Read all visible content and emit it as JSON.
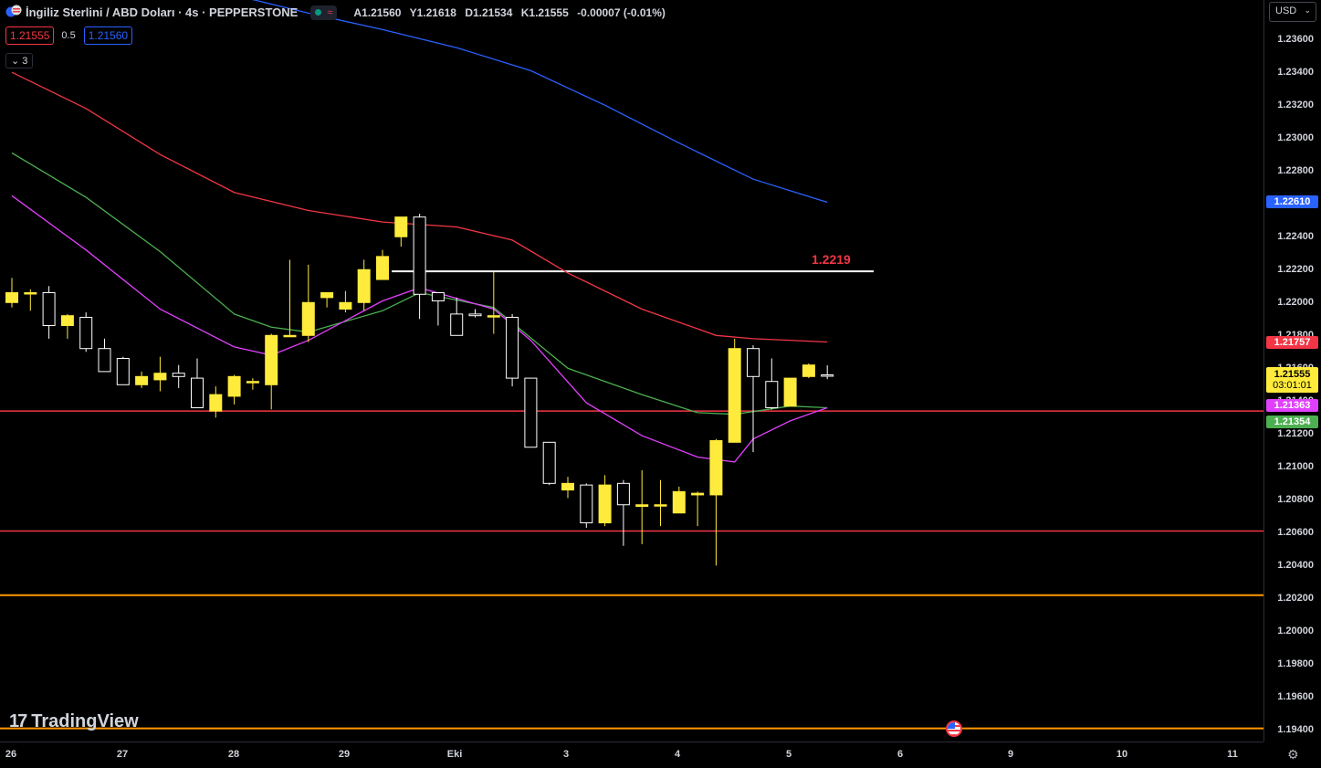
{
  "header": {
    "title": "İngiliz Sterlini / ABD Doları · 4s · PEPPERSTONE",
    "ohlc": [
      {
        "key": "A",
        "value": "1.21560"
      },
      {
        "key": "Y",
        "value": "1.21618"
      },
      {
        "key": "D",
        "value": "1.21534"
      },
      {
        "key": "K",
        "value": "1.21555"
      },
      {
        "key": "",
        "value": "-0.00007 (-0.01%)"
      }
    ],
    "wave_icon": "≈"
  },
  "quote": {
    "sell": "1.21555",
    "spread": "0.5",
    "buy": "1.21560"
  },
  "indicators_collapse": {
    "label": "3"
  },
  "currency": {
    "label": "USD"
  },
  "level_label": "1.2219",
  "branding": {
    "logo": "TradingView"
  },
  "colors": {
    "bull": "#ffeb3b",
    "bear": "#000000",
    "wick": "#ffffff",
    "ma_blue": "#2962ff",
    "ma_red": "#f23645",
    "ma_green": "#4caf50",
    "ma_purple": "#e040fb",
    "hline_red": "#f23645",
    "hline_orange": "#ff9800",
    "hline_white": "#ffffff"
  },
  "price_scale": {
    "ticks": [
      "1.23600",
      "1.23400",
      "1.23200",
      "1.23000",
      "1.22800",
      "1.22600",
      "1.22400",
      "1.22200",
      "1.22000",
      "1.21800",
      "1.21600",
      "1.21400",
      "1.21200",
      "1.21000",
      "1.20800",
      "1.20600",
      "1.20400",
      "1.20200",
      "1.20000",
      "1.19800",
      "1.19600",
      "1.19400"
    ],
    "labels": [
      {
        "text": "1.22610",
        "bg": "#2962ff",
        "fg": "#ffffff"
      },
      {
        "text": "1.21757",
        "bg": "#f23645",
        "fg": "#ffffff"
      },
      {
        "text": "1.21555",
        "sub": "03:01:01",
        "bg": "#ffeb3b",
        "fg": "#000000"
      },
      {
        "text": "1.21363",
        "bg": "#e040fb",
        "fg": "#ffffff"
      },
      {
        "text": "1.21354",
        "bg": "#4caf50",
        "fg": "#ffffff"
      }
    ]
  },
  "time_axis": {
    "labels": [
      "26",
      "27",
      "28",
      "29",
      "Eki",
      "3",
      "4",
      "5",
      "6",
      "9",
      "10",
      "11"
    ]
  },
  "chart_data": {
    "type": "candlestick",
    "ylim": [
      1.1933,
      1.2384
    ],
    "candles": [
      {
        "o": 1.22,
        "h": 1.2215,
        "l": 1.2197,
        "c": 1.2206
      },
      {
        "o": 1.2206,
        "h": 1.2208,
        "l": 1.2195,
        "c": 1.2206
      },
      {
        "o": 1.2206,
        "h": 1.221,
        "l": 1.2178,
        "c": 1.2186
      },
      {
        "o": 1.2186,
        "h": 1.2193,
        "l": 1.2178,
        "c": 1.2192
      },
      {
        "o": 1.2191,
        "h": 1.2194,
        "l": 1.217,
        "c": 1.2172
      },
      {
        "o": 1.2172,
        "h": 1.2178,
        "l": 1.2162,
        "c": 1.2158
      },
      {
        "o": 1.2166,
        "h": 1.2167,
        "l": 1.215,
        "c": 1.215
      },
      {
        "o": 1.215,
        "h": 1.2158,
        "l": 1.2148,
        "c": 1.2155
      },
      {
        "o": 1.2153,
        "h": 1.2167,
        "l": 1.2146,
        "c": 1.2157
      },
      {
        "o": 1.2157,
        "h": 1.2162,
        "l": 1.2148,
        "c": 1.2155
      },
      {
        "o": 1.2154,
        "h": 1.2166,
        "l": 1.2136,
        "c": 1.2136
      },
      {
        "o": 1.2134,
        "h": 1.2149,
        "l": 1.213,
        "c": 1.2144
      },
      {
        "o": 1.2143,
        "h": 1.2156,
        "l": 1.2138,
        "c": 1.2155
      },
      {
        "o": 1.2152,
        "h": 1.2154,
        "l": 1.2147,
        "c": 1.2152
      },
      {
        "o": 1.215,
        "h": 1.2181,
        "l": 1.2135,
        "c": 1.218
      },
      {
        "o": 1.218,
        "h": 1.2226,
        "l": 1.218,
        "c": 1.218
      },
      {
        "o": 1.218,
        "h": 1.2223,
        "l": 1.2176,
        "c": 1.22
      },
      {
        "o": 1.2203,
        "h": 1.2206,
        "l": 1.2197,
        "c": 1.2206
      },
      {
        "o": 1.2196,
        "h": 1.2207,
        "l": 1.2194,
        "c": 1.22
      },
      {
        "o": 1.22,
        "h": 1.2226,
        "l": 1.2195,
        "c": 1.222
      },
      {
        "o": 1.2214,
        "h": 1.2232,
        "l": 1.2214,
        "c": 1.2228
      },
      {
        "o": 1.224,
        "h": 1.225,
        "l": 1.2234,
        "c": 1.2252
      },
      {
        "o": 1.2252,
        "h": 1.2254,
        "l": 1.219,
        "c": 1.2205
      },
      {
        "o": 1.2206,
        "h": 1.2206,
        "l": 1.2186,
        "c": 1.2201
      },
      {
        "o": 1.2193,
        "h": 1.2203,
        "l": 1.218,
        "c": 1.218
      },
      {
        "o": 1.2193,
        "h": 1.2196,
        "l": 1.2191,
        "c": 1.2192
      },
      {
        "o": 1.2192,
        "h": 1.2219,
        "l": 1.2181,
        "c": 1.2192
      },
      {
        "o": 1.2191,
        "h": 1.2193,
        "l": 1.2149,
        "c": 1.2154
      },
      {
        "o": 1.2154,
        "h": 1.2152,
        "l": 1.2112,
        "c": 1.2112
      },
      {
        "o": 1.2115,
        "h": 1.2115,
        "l": 1.2089,
        "c": 1.209
      },
      {
        "o": 1.2086,
        "h": 1.2094,
        "l": 1.2081,
        "c": 1.209
      },
      {
        "o": 1.2089,
        "h": 1.209,
        "l": 1.2063,
        "c": 1.2066
      },
      {
        "o": 1.2066,
        "h": 1.2095,
        "l": 1.2064,
        "c": 1.2089
      },
      {
        "o": 1.209,
        "h": 1.2092,
        "l": 1.2052,
        "c": 1.2077
      },
      {
        "o": 1.2076,
        "h": 1.2098,
        "l": 1.2053,
        "c": 1.2077
      },
      {
        "o": 1.2077,
        "h": 1.2092,
        "l": 1.2064,
        "c": 1.2077
      },
      {
        "o": 1.2072,
        "h": 1.2088,
        "l": 1.2072,
        "c": 1.2085
      },
      {
        "o": 1.2083,
        "h": 1.2085,
        "l": 1.2064,
        "c": 1.2084
      },
      {
        "o": 1.2083,
        "h": 1.2117,
        "l": 1.204,
        "c": 1.2116
      },
      {
        "o": 1.2115,
        "h": 1.2178,
        "l": 1.2115,
        "c": 1.2172
      },
      {
        "o": 1.2172,
        "h": 1.2174,
        "l": 1.2109,
        "c": 1.2155
      },
      {
        "o": 1.2152,
        "h": 1.2166,
        "l": 1.2135,
        "c": 1.2136
      },
      {
        "o": 1.2137,
        "h": 1.2154,
        "l": 1.2137,
        "c": 1.2154
      },
      {
        "o": 1.2155,
        "h": 1.2163,
        "l": 1.2154,
        "c": 1.2162
      },
      {
        "o": 1.2156,
        "h": 1.21618,
        "l": 1.21534,
        "c": 1.21555
      }
    ],
    "moving_averages": [
      {
        "color": "#2962ff",
        "points": [
          [
            9,
            1.2394
          ],
          [
            12,
            1.2387
          ],
          [
            16,
            1.2376
          ],
          [
            20,
            1.2366
          ],
          [
            24,
            1.2355
          ],
          [
            28,
            1.2341
          ],
          [
            32,
            1.232
          ],
          [
            36,
            1.2297
          ],
          [
            40,
            1.2275
          ],
          [
            44,
            1.2261
          ]
        ]
      },
      {
        "color": "#f23645",
        "points": [
          [
            0,
            1.234
          ],
          [
            4,
            1.2318
          ],
          [
            8,
            1.229
          ],
          [
            12,
            1.2267
          ],
          [
            16,
            1.2256
          ],
          [
            20,
            1.2249
          ],
          [
            24,
            1.2246
          ],
          [
            27,
            1.2238
          ],
          [
            30,
            1.2218
          ],
          [
            34,
            1.2196
          ],
          [
            38,
            1.218
          ],
          [
            40,
            1.2178
          ],
          [
            44,
            1.2176
          ]
        ]
      },
      {
        "color": "#4caf50",
        "points": [
          [
            0,
            1.2291
          ],
          [
            4,
            1.2264
          ],
          [
            8,
            1.2231
          ],
          [
            12,
            1.2193
          ],
          [
            14,
            1.2185
          ],
          [
            16,
            1.2182
          ],
          [
            20,
            1.2195
          ],
          [
            22,
            1.2206
          ],
          [
            26,
            1.2197
          ],
          [
            30,
            1.216
          ],
          [
            34,
            1.2144
          ],
          [
            37,
            1.2133
          ],
          [
            39,
            1.2132
          ],
          [
            42,
            1.2137
          ],
          [
            44,
            1.2136
          ]
        ]
      },
      {
        "color": "#e040fb",
        "points": [
          [
            0,
            1.2265
          ],
          [
            4,
            1.2232
          ],
          [
            8,
            1.2196
          ],
          [
            12,
            1.2173
          ],
          [
            14,
            1.2168
          ],
          [
            16,
            1.2177
          ],
          [
            20,
            1.2201
          ],
          [
            22,
            1.2209
          ],
          [
            26,
            1.2196
          ],
          [
            28,
            1.2177
          ],
          [
            31,
            1.2139
          ],
          [
            34,
            1.2119
          ],
          [
            37,
            1.2106
          ],
          [
            39,
            1.2103
          ],
          [
            40,
            1.2117
          ],
          [
            42,
            1.2128
          ],
          [
            44,
            1.2136
          ]
        ]
      }
    ],
    "horizontal_lines": [
      {
        "price": 1.2134,
        "color": "#f23645"
      },
      {
        "price": 1.2061,
        "color": "#f23645"
      },
      {
        "price": 1.2022,
        "color": "#ff9800"
      },
      {
        "price": 1.1941,
        "color": "#ff9800"
      }
    ],
    "segment_level": {
      "price": 1.2219,
      "from": 20.5,
      "to": 46.5,
      "color": "#ffffff"
    }
  }
}
